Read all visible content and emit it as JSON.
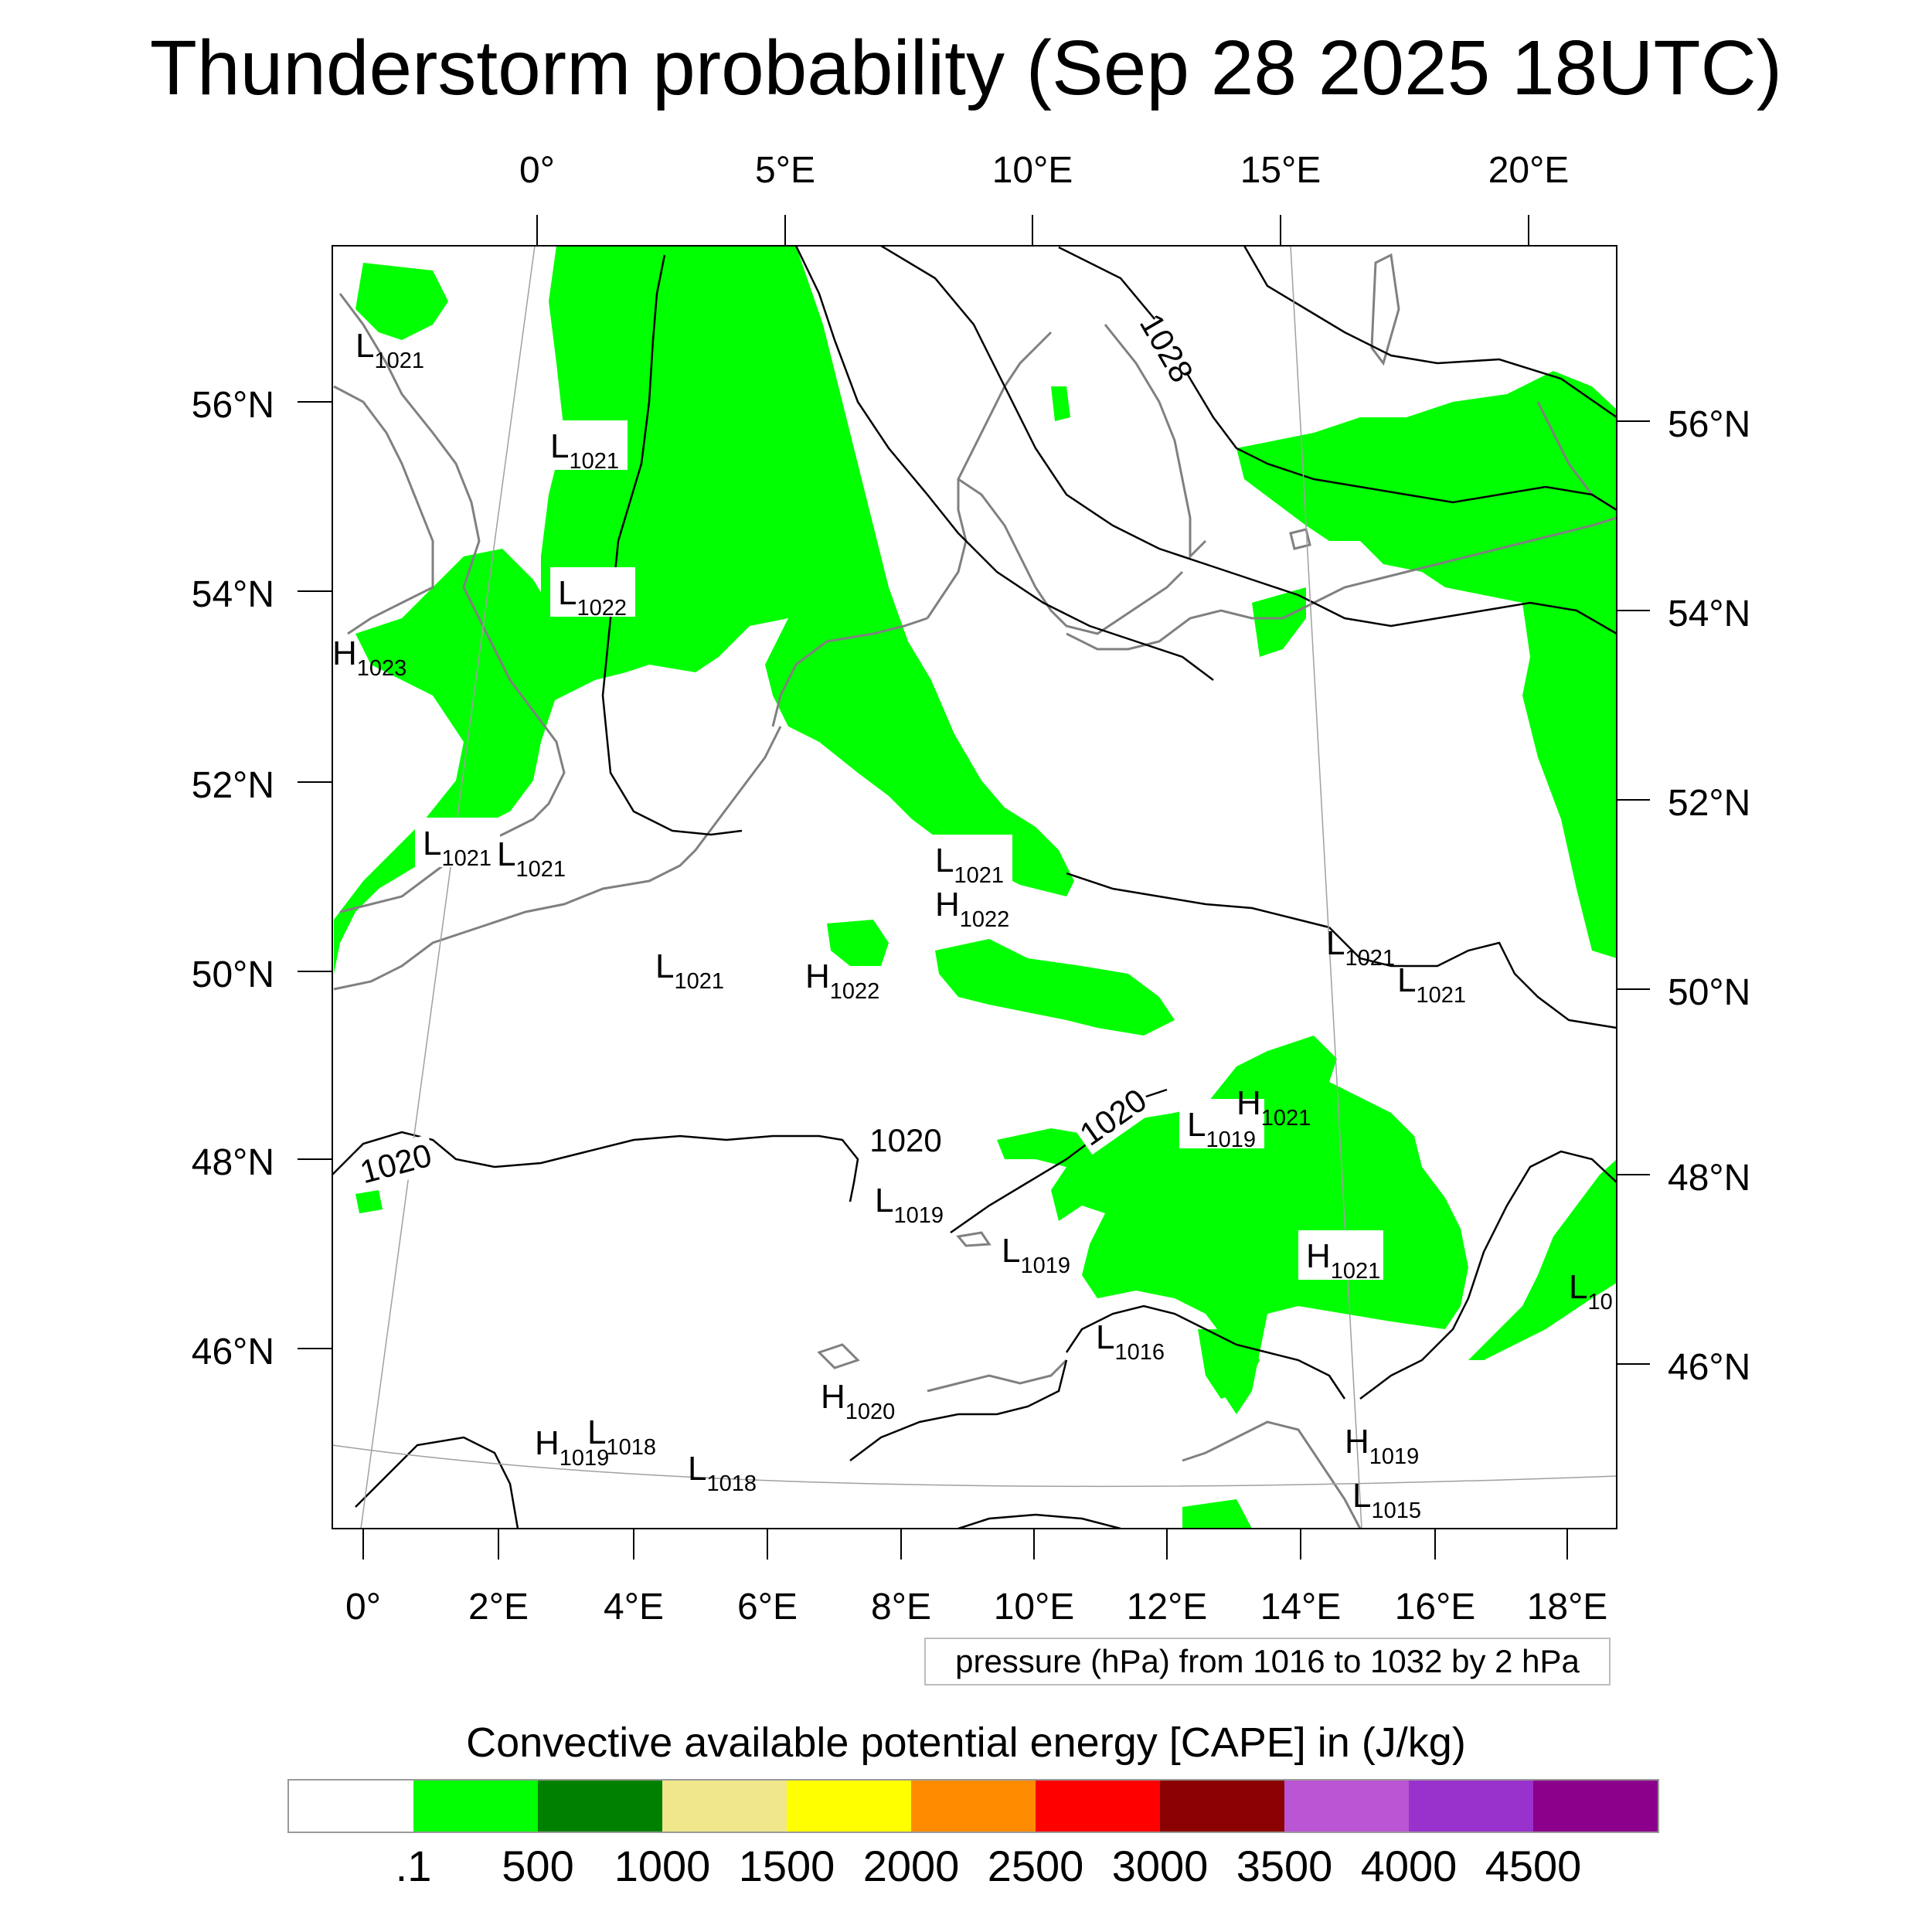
{
  "title": "Thunderstorm probability (Sep 28 2025 18UTC)",
  "top_lon_labels": [
    "0°",
    "5°E",
    "10°E",
    "15°E",
    "20°E"
  ],
  "bottom_lon_labels": [
    "0°",
    "2°E",
    "4°E",
    "6°E",
    "8°E",
    "10°E",
    "12°E",
    "14°E",
    "16°E",
    "18°E"
  ],
  "left_lat_labels": [
    "56°N",
    "54°N",
    "52°N",
    "50°N",
    "48°N",
    "46°N"
  ],
  "right_lat_labels": [
    "56°N",
    "54°N",
    "52°N",
    "50°N",
    "48°N",
    "46°N"
  ],
  "pressure_centers": [
    {
      "type": "L",
      "value": "1021"
    },
    {
      "type": "L",
      "value": "1021"
    },
    {
      "type": "L",
      "value": "1022"
    },
    {
      "type": "H",
      "value": "1023"
    },
    {
      "type": "L",
      "value": "1021"
    },
    {
      "type": "L",
      "value": "1021"
    },
    {
      "type": "L",
      "value": "1021"
    },
    {
      "type": "H",
      "value": "1022"
    },
    {
      "type": "L",
      "value": "1021"
    },
    {
      "type": "H",
      "value": "1022"
    },
    {
      "type": "L",
      "value": "1021"
    },
    {
      "type": "L",
      "value": "1021"
    },
    {
      "type": "L",
      "value": "1019"
    },
    {
      "type": "H",
      "value": "1021"
    },
    {
      "type": "L",
      "value": "1019"
    },
    {
      "type": "L",
      "value": "1019"
    },
    {
      "type": "H",
      "value": "1021"
    },
    {
      "type": "L",
      "value": "10"
    },
    {
      "type": "L",
      "value": "1016"
    },
    {
      "type": "H",
      "value": "1020"
    },
    {
      "type": "H",
      "value": "1019"
    },
    {
      "type": "L",
      "value": "1018"
    },
    {
      "type": "L",
      "value": "1018"
    },
    {
      "type": "H",
      "value": "1019"
    },
    {
      "type": "L",
      "value": "1015"
    }
  ],
  "contour_labels": [
    "1028",
    "1020",
    "1020",
    "1020"
  ],
  "contour_info": "pressure (hPa) from 1016 to 1032 by 2 hPa",
  "colorbar": {
    "title": "Convective available potential energy [CAPE] in (J/kg)",
    "colors": [
      "#ffffff",
      "#00ff00",
      "#008000",
      "#f0e68c",
      "#ffff00",
      "#ff8c00",
      "#ff0000",
      "#8b0000",
      "#ba55d3",
      "#9932cc",
      "#8b008b"
    ],
    "labels": [
      ".1",
      "500",
      "1000",
      "1500",
      "2000",
      "2500",
      "3000",
      "3500",
      "4000",
      "4500"
    ]
  },
  "fill_color": "#00ff00",
  "coast_color": "#808080"
}
